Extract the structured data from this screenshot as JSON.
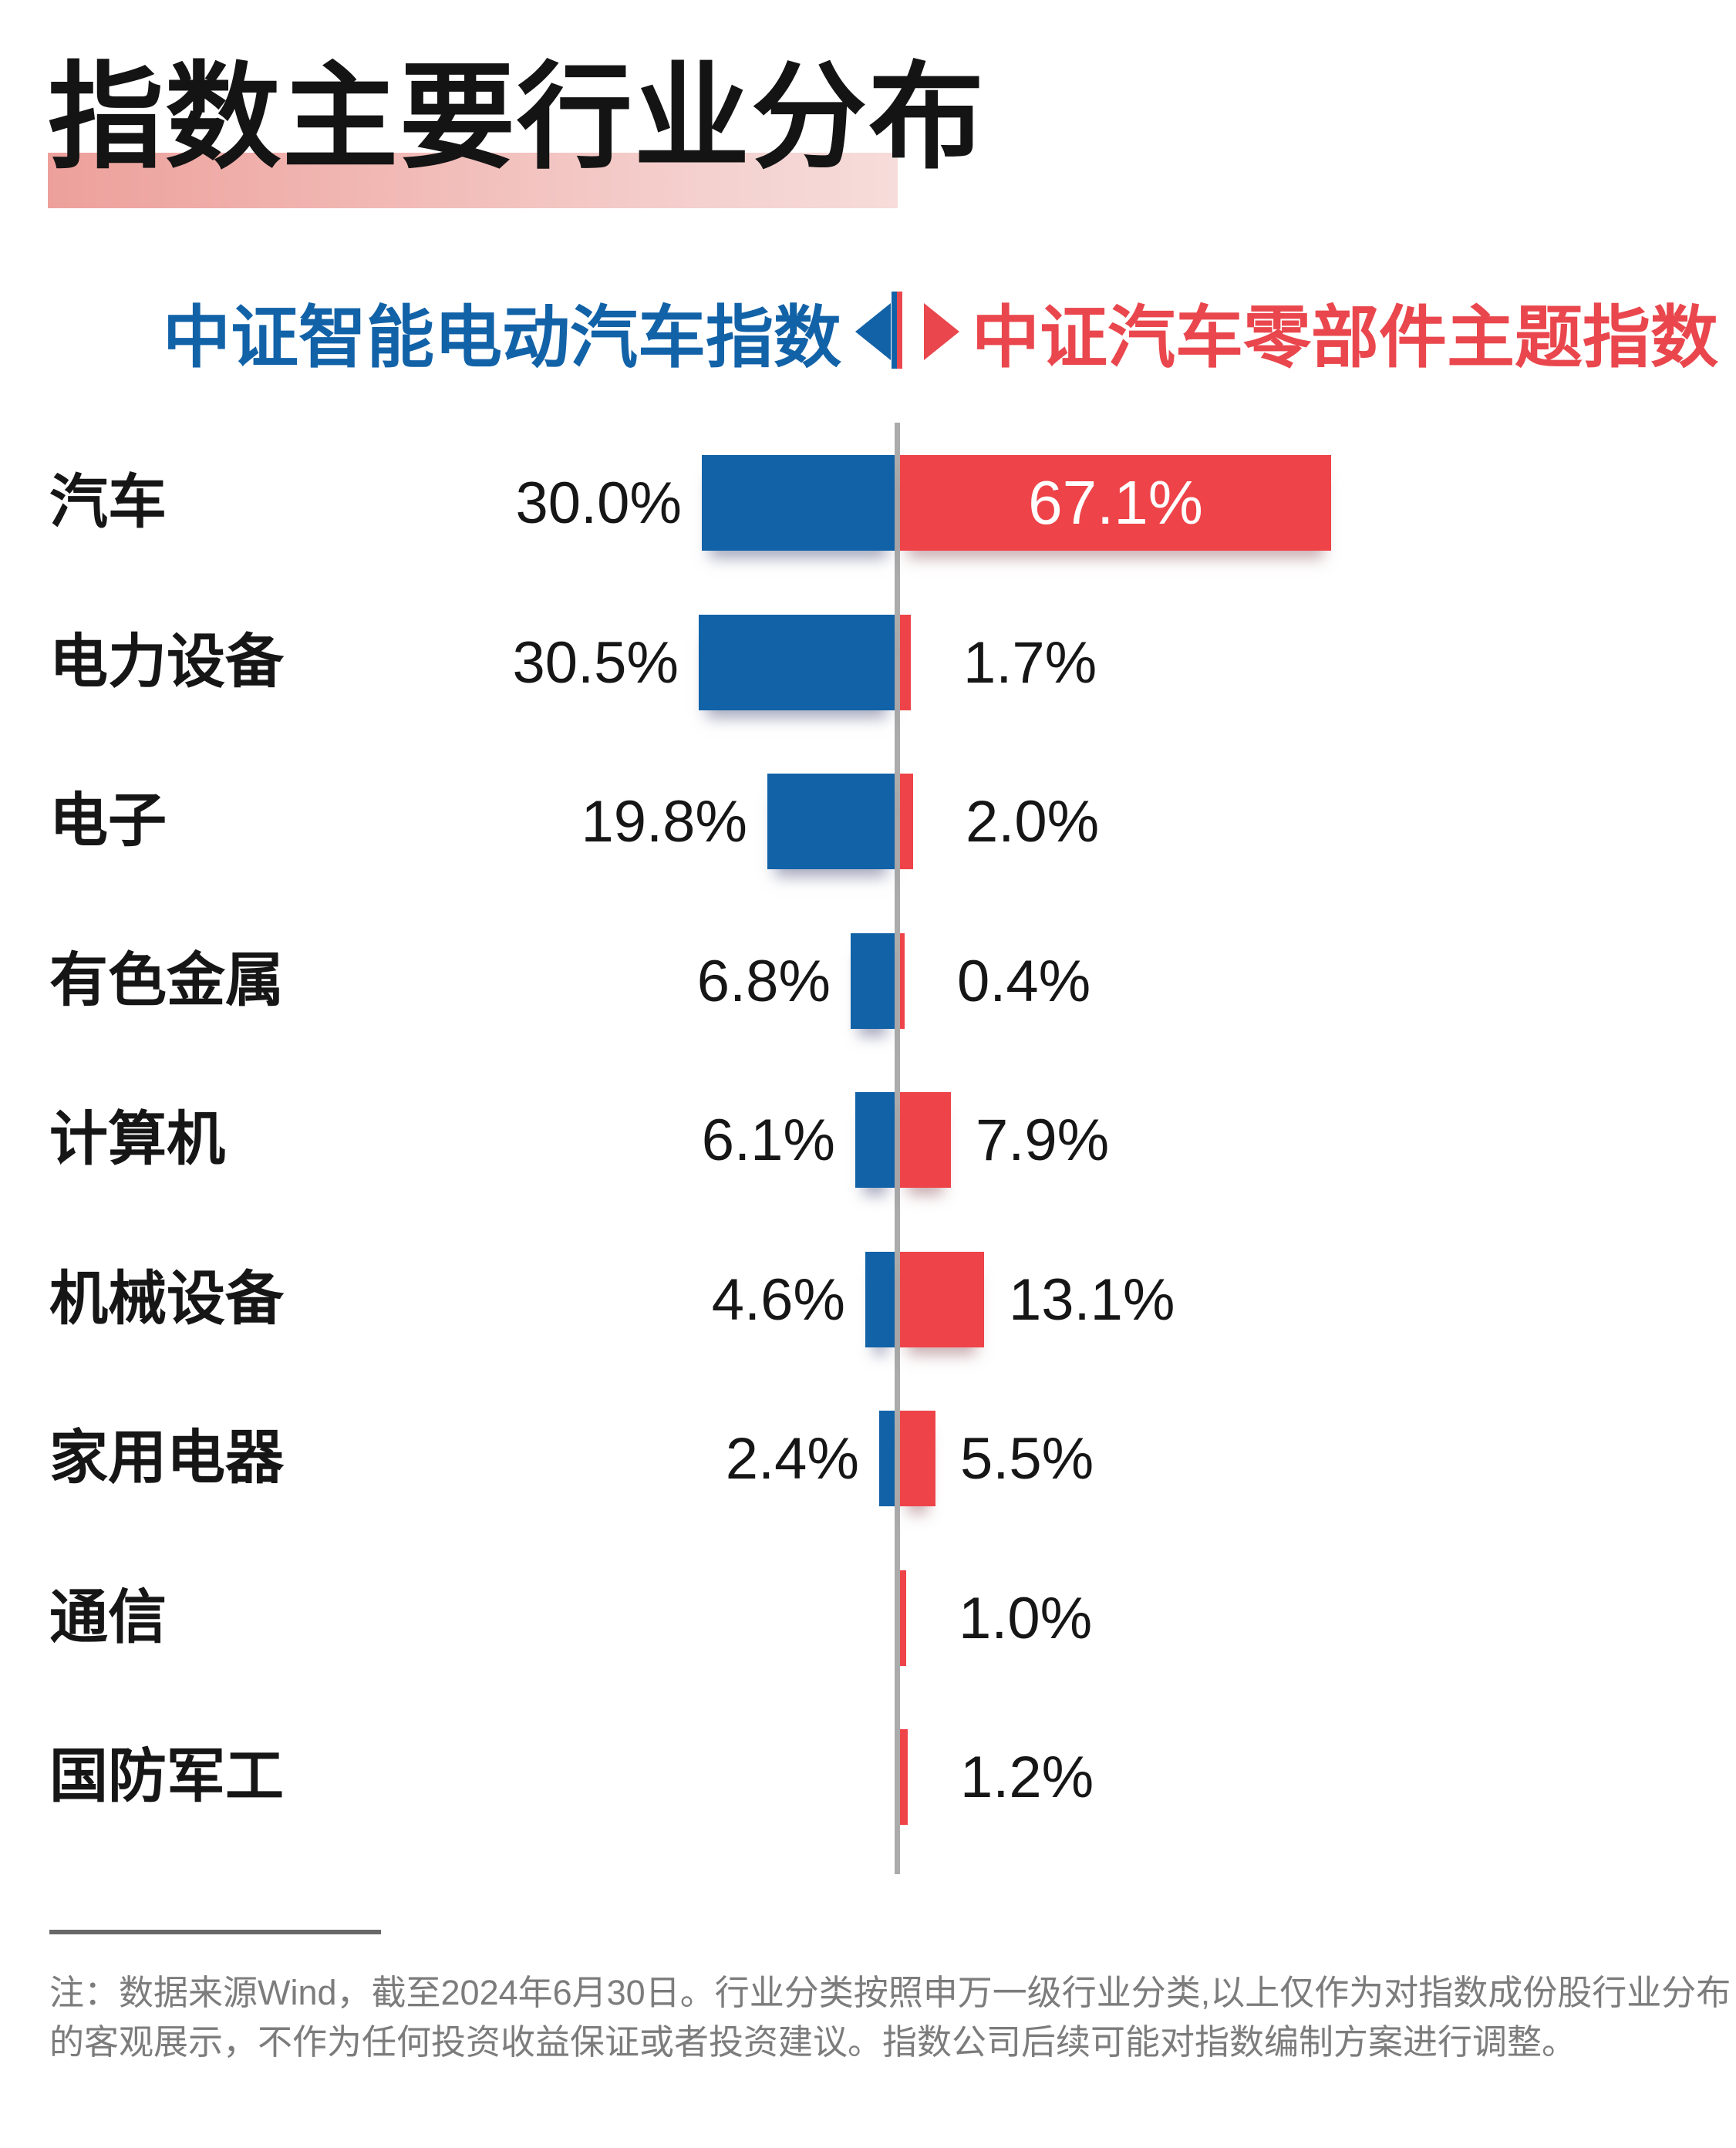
{
  "title": "指数主要行业分布",
  "header": {
    "left_index": "中证智能电动汽车指数",
    "right_index": "中证汽车零部件主题指数"
  },
  "chart_data": {
    "type": "bar",
    "subtype": "diverging-horizontal-tornado",
    "unit": "%",
    "categories": [
      "汽车",
      "电力设备",
      "电子",
      "有色金属",
      "计算机",
      "机械设备",
      "家用电器",
      "通信",
      "国防军工"
    ],
    "series": [
      {
        "name": "中证智能电动汽车指数",
        "side": "left",
        "color": "#1262a8",
        "values": [
          30.0,
          30.5,
          19.8,
          6.8,
          6.1,
          4.6,
          2.4,
          null,
          null
        ]
      },
      {
        "name": "中证汽车零部件主题指数",
        "side": "right",
        "color": "#ee4348",
        "values": [
          67.1,
          1.7,
          2.0,
          0.4,
          7.9,
          13.1,
          5.5,
          1.0,
          1.2
        ]
      }
    ],
    "value_label_format": "one-decimal-percent",
    "axis": {
      "center_line": true,
      "gridlines": false
    },
    "legend_position": "top"
  },
  "colors": {
    "blue": "#1262a8",
    "red": "#ee4348",
    "title_text": "#141414",
    "title_highlight_start": "#eda09b",
    "title_highlight_end": "#f6dcda",
    "axis_gray": "#ababab",
    "note_gray": "#7c7c7c"
  },
  "note": {
    "line1": "注：数据来源Wind，截至2024年6月30日。行业分类按照申万一级行业分类,以上仅作为对指数成份股行业分布",
    "line2": "的客观展示，不作为任何投资收益保证或者投资建议。指数公司后续可能对指数编制方案进行调整。"
  }
}
